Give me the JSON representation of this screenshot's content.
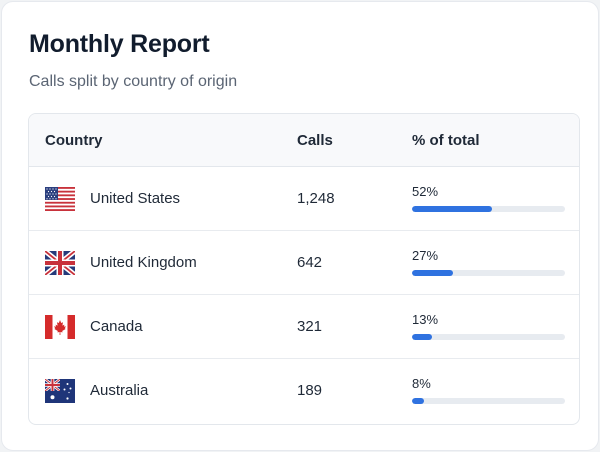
{
  "report": {
    "title": "Monthly Report",
    "subtitle": "Calls split by country of origin"
  },
  "table": {
    "headers": {
      "country": "Country",
      "calls": "Calls",
      "percent": "% of total"
    },
    "rows": [
      {
        "country": "United States",
        "flag_icon": "us-flag-icon",
        "calls": "1,248",
        "percent_label": "52%",
        "percent": 52
      },
      {
        "country": "United Kingdom",
        "flag_icon": "uk-flag-icon",
        "calls": "642",
        "percent_label": "27%",
        "percent": 27
      },
      {
        "country": "Canada",
        "flag_icon": "canada-flag-icon",
        "calls": "321",
        "percent_label": "13%",
        "percent": 13
      },
      {
        "country": "Australia",
        "flag_icon": "australia-flag-icon",
        "calls": "189",
        "percent_label": "8%",
        "percent": 8
      }
    ]
  },
  "colors": {
    "bar_fill": "#2f72e0",
    "bar_track": "#e7ebf0"
  }
}
